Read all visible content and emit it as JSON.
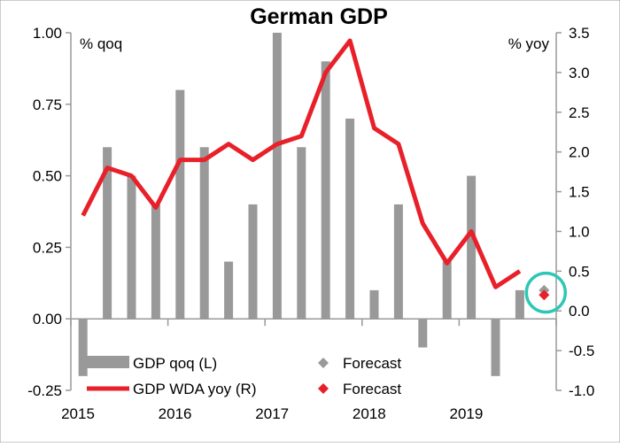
{
  "chart_data": {
    "type": "bar+line",
    "title": "German GDP",
    "left_axis": {
      "unit": "% qoq",
      "ylim": [
        -0.25,
        1.0
      ],
      "ticks": [
        "1.00",
        "0.75",
        "0.50",
        "0.25",
        "0.00",
        "-0.25"
      ],
      "tick_values": [
        1.0,
        0.75,
        0.5,
        0.25,
        0.0,
        -0.25
      ]
    },
    "right_axis": {
      "unit": "% yoy",
      "ylim": [
        -1.0,
        3.5
      ],
      "ticks": [
        "3.5",
        "3.0",
        "2.5",
        "2.0",
        "1.5",
        "1.0",
        "0.5",
        "0.0",
        "-0.5",
        "-1.0"
      ],
      "tick_values": [
        3.5,
        3.0,
        2.5,
        2.0,
        1.5,
        1.0,
        0.5,
        0.0,
        -0.5,
        -1.0
      ]
    },
    "x_labels": [
      "2015",
      "2016",
      "2017",
      "2018",
      "2019"
    ],
    "quarters": [
      "2015Q1",
      "2015Q2",
      "2015Q3",
      "2015Q4",
      "2016Q1",
      "2016Q2",
      "2016Q3",
      "2016Q4",
      "2017Q1",
      "2017Q2",
      "2017Q3",
      "2017Q4",
      "2018Q1",
      "2018Q2",
      "2018Q3",
      "2018Q4",
      "2019Q1",
      "2019Q2",
      "2019Q3",
      "2019Q4"
    ],
    "series": [
      {
        "name": "GDP qoq (L)",
        "type": "bar",
        "axis": "left",
        "color": "#999999",
        "values": [
          -0.2,
          0.6,
          0.5,
          0.4,
          0.8,
          0.6,
          0.2,
          0.4,
          1.0,
          0.6,
          0.9,
          0.7,
          0.1,
          0.4,
          -0.1,
          0.2,
          0.5,
          -0.2,
          0.1,
          null
        ]
      },
      {
        "name": "GDP WDA yoy (R)",
        "type": "line",
        "axis": "right",
        "color": "#e8202a",
        "values": [
          1.2,
          1.8,
          1.7,
          1.3,
          1.9,
          1.9,
          2.1,
          1.9,
          2.1,
          2.2,
          3.0,
          3.4,
          2.3,
          2.1,
          1.1,
          0.6,
          1.0,
          0.3,
          0.5,
          null
        ]
      }
    ],
    "forecasts": [
      {
        "name": "Forecast",
        "of": "GDP qoq (L)",
        "axis": "left",
        "quarter": "2019Q4",
        "value": 0.1,
        "color": "#999999"
      },
      {
        "name": "Forecast",
        "of": "GDP WDA yoy (R)",
        "axis": "right",
        "quarter": "2019Q4",
        "value": 0.2,
        "color": "#e8202a"
      }
    ],
    "highlight": {
      "quarter": "2019Q4",
      "shape": "circle",
      "color": "#2ec7b6"
    },
    "legend": {
      "placement": "bottom-left",
      "items": [
        {
          "label": "GDP qoq (L)",
          "symbol": "bar",
          "color": "#999999"
        },
        {
          "label": "Forecast",
          "symbol": "diamond",
          "color": "#999999"
        },
        {
          "label": "GDP WDA yoy (R)",
          "symbol": "line",
          "color": "#e8202a"
        },
        {
          "label": "Forecast",
          "symbol": "diamond",
          "color": "#e8202a"
        }
      ]
    },
    "grid": false
  }
}
